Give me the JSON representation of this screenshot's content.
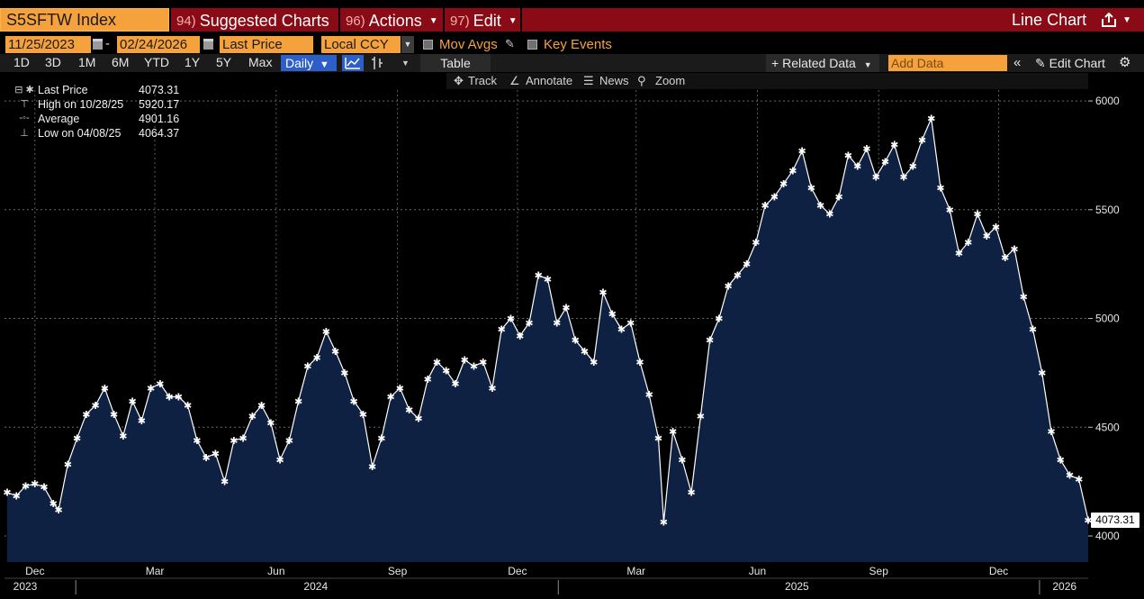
{
  "title_bar": {
    "ticker": "S5SFTW Index",
    "suggested_num": "94)",
    "suggested_label": "Suggested Charts",
    "actions_num": "96)",
    "actions_label": "Actions",
    "edit_num": "97)",
    "edit_label": "Edit",
    "chart_title": "Line Chart",
    "share_icon": "share-icon"
  },
  "date_row": {
    "start_date": "11/25/2023",
    "end_date": "02/24/2026",
    "separator": "-",
    "field": "Last Price",
    "currency": "Local CCY",
    "mov_avgs": "Mov Avgs",
    "key_events": "Key Events"
  },
  "toolbar": {
    "timeframes": [
      "1D",
      "3D",
      "1M",
      "6M",
      "YTD",
      "1Y",
      "5Y",
      "Max"
    ],
    "frequency": "Daily",
    "table": "Table",
    "related_data": "Related Data",
    "add_data_placeholder": "Add Data",
    "edit_chart": "Edit Chart"
  },
  "chart_tools": {
    "track": "Track",
    "annotate": "Annotate",
    "news": "News",
    "zoom": "Zoom"
  },
  "legend": {
    "rows": [
      {
        "label": "Last Price",
        "value": "4073.31"
      },
      {
        "label": "High on 10/28/25",
        "value": "5920.17"
      },
      {
        "label": "Average",
        "value": "4901.16"
      },
      {
        "label": "Low on 04/08/25",
        "value": "4064.37"
      }
    ]
  },
  "last_price_tag": "4073.31",
  "colors": {
    "accent_orange": "#f6a23c",
    "title_red": "#8a0b15",
    "area_fill": "#0e2142",
    "line": "#ffffff",
    "selected_blue": "#2c5fc7"
  },
  "chart_data": {
    "type": "area",
    "title": "",
    "xlabel": "",
    "ylabel": "",
    "ylim": [
      3880,
      6050
    ],
    "xlim": [
      "2023-11-25",
      "2026-02-24"
    ],
    "y_ticks": [
      4000,
      4500,
      5000,
      5500,
      6000
    ],
    "x_month_labels": [
      "Dec",
      "Mar",
      "Jun",
      "Sep",
      "Dec",
      "Mar",
      "Jun",
      "Sep",
      "Dec"
    ],
    "x_year_labels": [
      "2023",
      "2024",
      "2025",
      "2026"
    ],
    "grid": true,
    "legend_position": "top-left",
    "series": [
      {
        "name": "Last Price",
        "points": [
          [
            "2023-11-27",
            4200
          ],
          [
            "2023-12-04",
            4185
          ],
          [
            "2023-12-11",
            4230
          ],
          [
            "2023-12-18",
            4240
          ],
          [
            "2023-12-25",
            4225
          ],
          [
            "2024-01-01",
            4150
          ],
          [
            "2024-01-05",
            4120
          ],
          [
            "2024-01-12",
            4330
          ],
          [
            "2024-01-19",
            4450
          ],
          [
            "2024-01-26",
            4560
          ],
          [
            "2024-02-02",
            4600
          ],
          [
            "2024-02-09",
            4680
          ],
          [
            "2024-02-16",
            4560
          ],
          [
            "2024-02-23",
            4460
          ],
          [
            "2024-03-01",
            4620
          ],
          [
            "2024-03-08",
            4530
          ],
          [
            "2024-03-15",
            4680
          ],
          [
            "2024-03-22",
            4700
          ],
          [
            "2024-03-29",
            4640
          ],
          [
            "2024-04-05",
            4640
          ],
          [
            "2024-04-12",
            4600
          ],
          [
            "2024-04-19",
            4440
          ],
          [
            "2024-04-26",
            4360
          ],
          [
            "2024-05-03",
            4380
          ],
          [
            "2024-05-10",
            4250
          ],
          [
            "2024-05-17",
            4440
          ],
          [
            "2024-05-24",
            4450
          ],
          [
            "2024-05-31",
            4550
          ],
          [
            "2024-06-07",
            4600
          ],
          [
            "2024-06-14",
            4520
          ],
          [
            "2024-06-21",
            4350
          ],
          [
            "2024-06-28",
            4440
          ],
          [
            "2024-07-05",
            4620
          ],
          [
            "2024-07-12",
            4780
          ],
          [
            "2024-07-19",
            4820
          ],
          [
            "2024-07-26",
            4940
          ],
          [
            "2024-08-02",
            4850
          ],
          [
            "2024-08-09",
            4750
          ],
          [
            "2024-08-16",
            4620
          ],
          [
            "2024-08-23",
            4560
          ],
          [
            "2024-08-30",
            4320
          ],
          [
            "2024-09-06",
            4450
          ],
          [
            "2024-09-13",
            4640
          ],
          [
            "2024-09-20",
            4680
          ],
          [
            "2024-09-27",
            4580
          ],
          [
            "2024-10-04",
            4540
          ],
          [
            "2024-10-11",
            4720
          ],
          [
            "2024-10-18",
            4800
          ],
          [
            "2024-10-25",
            4760
          ],
          [
            "2024-11-01",
            4700
          ],
          [
            "2024-11-08",
            4810
          ],
          [
            "2024-11-15",
            4780
          ],
          [
            "2024-11-22",
            4800
          ],
          [
            "2024-11-29",
            4680
          ],
          [
            "2024-12-06",
            4950
          ],
          [
            "2024-12-13",
            5000
          ],
          [
            "2024-12-20",
            4920
          ],
          [
            "2024-12-27",
            4980
          ],
          [
            "2025-01-03",
            5200
          ],
          [
            "2025-01-10",
            5180
          ],
          [
            "2025-01-17",
            4980
          ],
          [
            "2025-01-24",
            5050
          ],
          [
            "2025-01-31",
            4900
          ],
          [
            "2025-02-07",
            4850
          ],
          [
            "2025-02-14",
            4800
          ],
          [
            "2025-02-21",
            5120
          ],
          [
            "2025-02-28",
            5020
          ],
          [
            "2025-03-07",
            4950
          ],
          [
            "2025-03-14",
            4980
          ],
          [
            "2025-03-21",
            4800
          ],
          [
            "2025-03-28",
            4650
          ],
          [
            "2025-04-04",
            4450
          ],
          [
            "2025-04-08",
            4064
          ],
          [
            "2025-04-15",
            4480
          ],
          [
            "2025-04-22",
            4350
          ],
          [
            "2025-04-29",
            4200
          ],
          [
            "2025-05-06",
            4550
          ],
          [
            "2025-05-13",
            4900
          ],
          [
            "2025-05-20",
            5000
          ],
          [
            "2025-05-27",
            5150
          ],
          [
            "2025-06-03",
            5200
          ],
          [
            "2025-06-10",
            5250
          ],
          [
            "2025-06-17",
            5350
          ],
          [
            "2025-06-24",
            5520
          ],
          [
            "2025-07-01",
            5560
          ],
          [
            "2025-07-08",
            5620
          ],
          [
            "2025-07-15",
            5680
          ],
          [
            "2025-07-22",
            5770
          ],
          [
            "2025-07-29",
            5600
          ],
          [
            "2025-08-05",
            5520
          ],
          [
            "2025-08-12",
            5480
          ],
          [
            "2025-08-19",
            5560
          ],
          [
            "2025-08-26",
            5750
          ],
          [
            "2025-09-02",
            5700
          ],
          [
            "2025-09-09",
            5780
          ],
          [
            "2025-09-16",
            5650
          ],
          [
            "2025-09-23",
            5720
          ],
          [
            "2025-09-30",
            5800
          ],
          [
            "2025-10-07",
            5650
          ],
          [
            "2025-10-14",
            5700
          ],
          [
            "2025-10-21",
            5820
          ],
          [
            "2025-10-28",
            5920
          ],
          [
            "2025-11-04",
            5600
          ],
          [
            "2025-11-11",
            5500
          ],
          [
            "2025-11-18",
            5300
          ],
          [
            "2025-11-25",
            5350
          ],
          [
            "2025-12-02",
            5480
          ],
          [
            "2025-12-09",
            5380
          ],
          [
            "2025-12-16",
            5420
          ],
          [
            "2025-12-23",
            5280
          ],
          [
            "2025-12-30",
            5320
          ],
          [
            "2026-01-06",
            5100
          ],
          [
            "2026-01-13",
            4950
          ],
          [
            "2026-01-20",
            4750
          ],
          [
            "2026-01-27",
            4480
          ],
          [
            "2026-02-03",
            4350
          ],
          [
            "2026-02-10",
            4280
          ],
          [
            "2026-02-17",
            4260
          ],
          [
            "2026-02-24",
            4073.31
          ]
        ]
      }
    ]
  }
}
